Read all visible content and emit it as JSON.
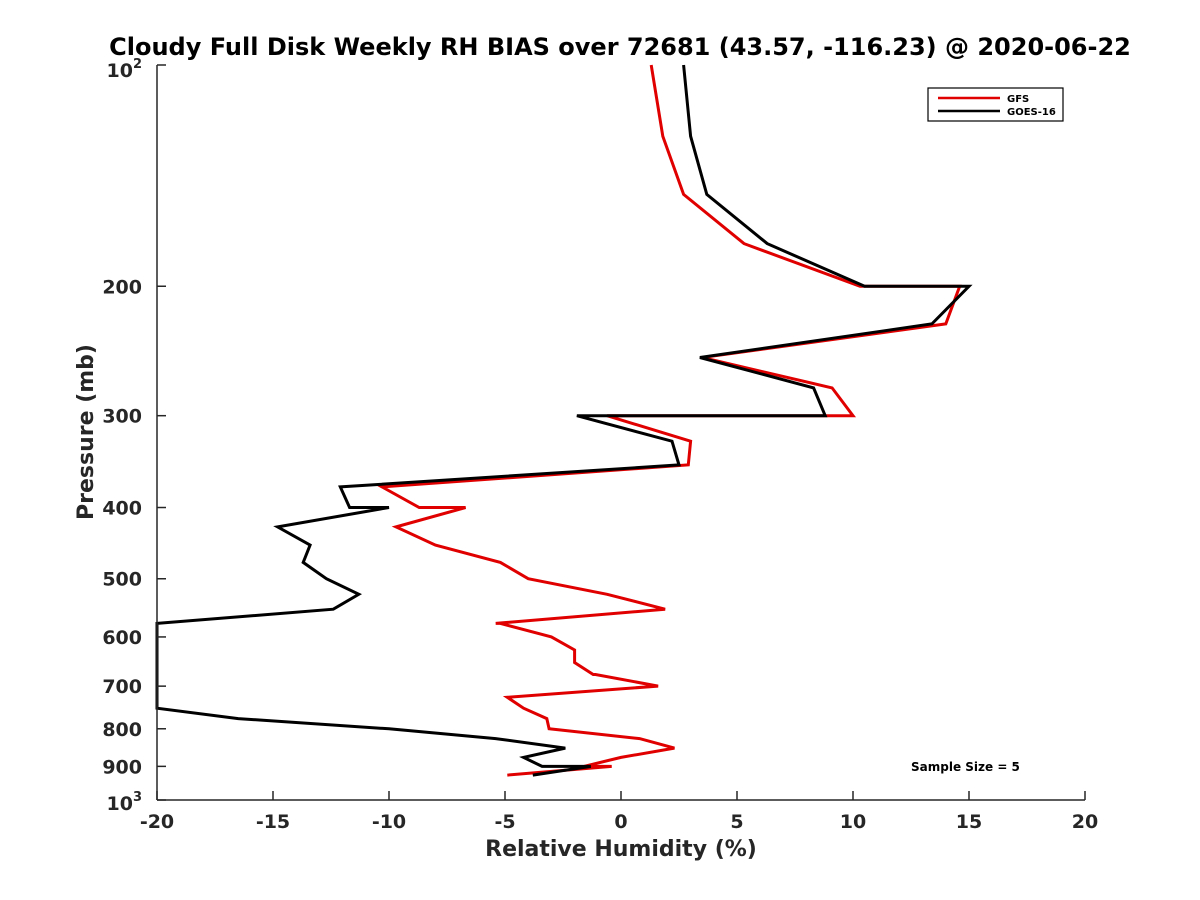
{
  "chart_data": {
    "type": "line",
    "title": "Cloudy Full Disk Weekly RH BIAS over 72681 (43.57, -116.23) @ 2020-06-22",
    "xlabel": "Relative Humidity (%)",
    "ylabel": "Pressure (mb)",
    "xlim": [
      -20,
      20
    ],
    "ylim": [
      100,
      1000
    ],
    "yscale": "log",
    "y_reversed": true,
    "xticks": [
      -20,
      -15,
      -10,
      -5,
      0,
      5,
      10,
      15,
      20
    ],
    "yticks": [
      200,
      300,
      400,
      500,
      600,
      700,
      800,
      900
    ],
    "ytick_labels": [
      "200",
      "300",
      "400",
      "500",
      "600",
      "700",
      "800",
      "900"
    ],
    "ylim_labels": {
      "base": "10",
      "min_exp": "2",
      "max_exp": "3"
    },
    "legend_position": "top-right",
    "grid": false,
    "annotation": "Sample Size = 5",
    "series": [
      {
        "name": "GFS",
        "color": "#e00000",
        "points": [
          [
            1.3,
            100
          ],
          [
            1.8,
            125
          ],
          [
            2.7,
            150
          ],
          [
            5.3,
            175
          ],
          [
            10.3,
            200
          ],
          [
            14.6,
            200
          ],
          [
            14.0,
            225
          ],
          [
            3.5,
            250
          ],
          [
            9.1,
            275
          ],
          [
            10.0,
            300
          ],
          [
            -0.6,
            300
          ],
          [
            3.0,
            325
          ],
          [
            2.9,
            350
          ],
          [
            -10.3,
            375
          ],
          [
            -8.7,
            400
          ],
          [
            -6.7,
            400
          ],
          [
            -9.7,
            425
          ],
          [
            -8.0,
            450
          ],
          [
            -5.2,
            475
          ],
          [
            -4.0,
            500
          ],
          [
            -0.6,
            525
          ],
          [
            1.9,
            550
          ],
          [
            -5.4,
            575
          ],
          [
            -5.2,
            575
          ],
          [
            -3.0,
            600
          ],
          [
            -2.0,
            625
          ],
          [
            -2.0,
            650
          ],
          [
            -1.2,
            675
          ],
          [
            -1.1,
            675
          ],
          [
            1.6,
            700
          ],
          [
            -4.9,
            725
          ],
          [
            -4.2,
            750
          ],
          [
            -3.2,
            775
          ],
          [
            -3.1,
            800
          ],
          [
            0.8,
            825
          ],
          [
            2.3,
            850
          ],
          [
            0.0,
            875
          ],
          [
            -1.6,
            900
          ],
          [
            -0.4,
            900
          ],
          [
            -4.9,
            925
          ]
        ]
      },
      {
        "name": "GOES-16",
        "color": "#000000",
        "points": [
          [
            2.7,
            100
          ],
          [
            3.0,
            125
          ],
          [
            3.7,
            150
          ],
          [
            6.3,
            175
          ],
          [
            10.5,
            200
          ],
          [
            15.0,
            200
          ],
          [
            13.4,
            225
          ],
          [
            3.4,
            250
          ],
          [
            8.3,
            275
          ],
          [
            8.8,
            300
          ],
          [
            -1.9,
            300
          ],
          [
            2.2,
            325
          ],
          [
            2.5,
            350
          ],
          [
            -12.1,
            375
          ],
          [
            -11.7,
            400
          ],
          [
            -10.0,
            400
          ],
          [
            -14.8,
            425
          ],
          [
            -13.4,
            450
          ],
          [
            -13.7,
            475
          ],
          [
            -12.7,
            500
          ],
          [
            -11.3,
            525
          ],
          [
            -12.4,
            550
          ],
          [
            -20.0,
            575
          ],
          [
            -20.0,
            750
          ],
          [
            -16.5,
            775
          ],
          [
            -10.0,
            800
          ],
          [
            -5.4,
            825
          ],
          [
            -2.4,
            850
          ],
          [
            -4.2,
            875
          ],
          [
            -3.4,
            900
          ],
          [
            -1.3,
            900
          ],
          [
            -3.8,
            925
          ]
        ]
      }
    ]
  }
}
